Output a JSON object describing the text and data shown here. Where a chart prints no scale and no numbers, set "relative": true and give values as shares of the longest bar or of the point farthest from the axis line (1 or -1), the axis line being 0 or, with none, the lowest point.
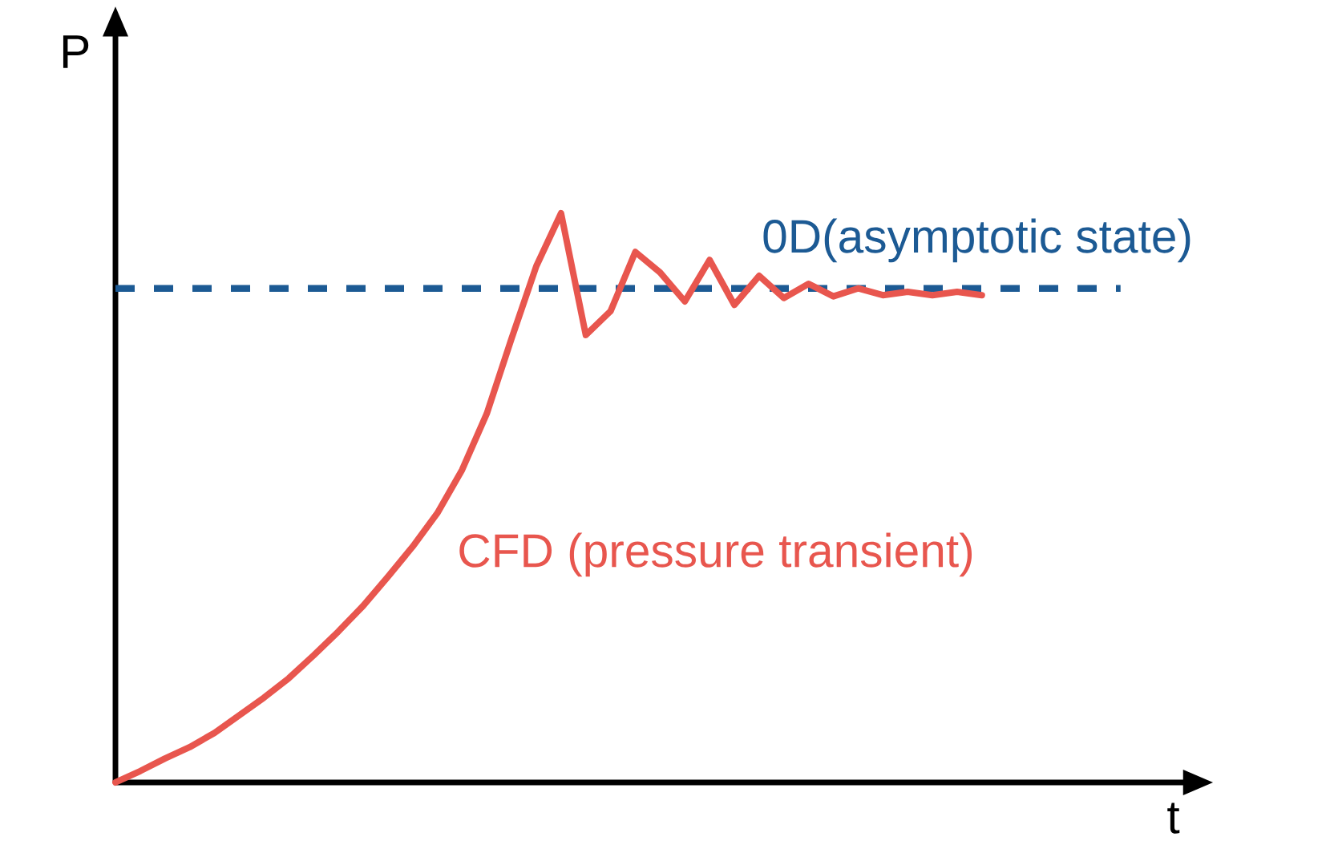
{
  "chart_data": {
    "type": "line",
    "relative": true,
    "xlabel": "t",
    "ylabel": "P",
    "categories": [
      null,
      null,
      null,
      null,
      null,
      null,
      null,
      null,
      null,
      null,
      null,
      null,
      null,
      null,
      null,
      null,
      null,
      null,
      null,
      null,
      null,
      null,
      null,
      null,
      null,
      null,
      null,
      null,
      null,
      null,
      null,
      null,
      null,
      null,
      null,
      null
    ],
    "series": [
      {
        "name": "CFD (pressure transient)",
        "color": "#e8564e",
        "values": [
          0,
          0.02,
          0.042,
          0.062,
          0.087,
          0.118,
          0.149,
          0.183,
          0.223,
          0.265,
          0.31,
          0.361,
          0.414,
          0.473,
          0.549,
          0.648,
          0.78,
          0.907,
          1,
          0.786,
          0.828,
          0.932,
          0.896,
          0.845,
          0.918,
          0.839,
          0.89,
          0.851,
          0.876,
          0.854,
          0.868,
          0.856,
          0.862,
          0.856,
          0.862,
          0.856
        ]
      }
    ],
    "ref_lines": [
      {
        "axis": "y",
        "value": 0.868,
        "label": "0D(asymptotic state)",
        "color": "#1c5a94",
        "line_style": "dashed"
      }
    ]
  }
}
